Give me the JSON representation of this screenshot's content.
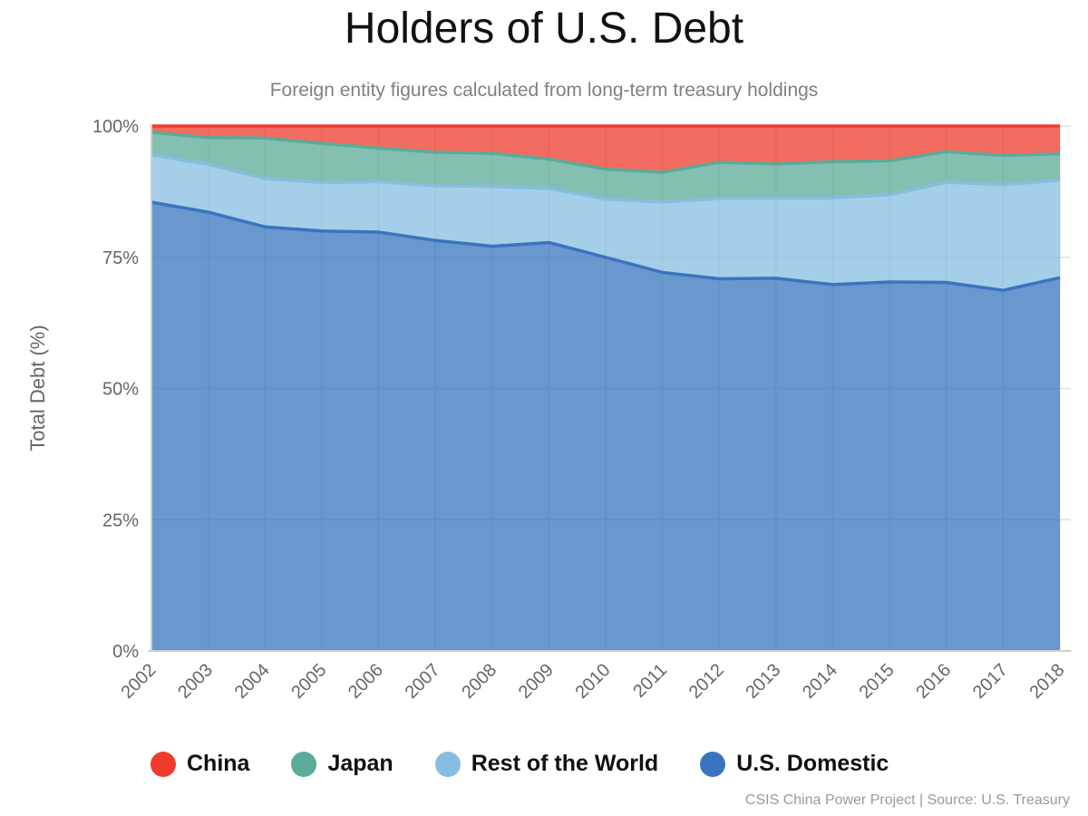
{
  "chart_data": {
    "type": "area",
    "title": "Holders of U.S. Debt",
    "subtitle": "Foreign entity figures calculated from long-term treasury holdings",
    "ylabel": "Total Debt (%)",
    "xlabel": "",
    "x": [
      "2002",
      "2003",
      "2004",
      "2005",
      "2006",
      "2007",
      "2008",
      "2009",
      "2010",
      "2011",
      "2012",
      "2013",
      "2014",
      "2015",
      "2016",
      "2017",
      "2018"
    ],
    "ylim": [
      0,
      100
    ],
    "yticks": [
      "0%",
      "25%",
      "50%",
      "75%",
      "100%"
    ],
    "stacked": true,
    "grid": true,
    "legend_position": "bottom",
    "series": [
      {
        "name": "U.S. Domestic",
        "color": "#3a74bf",
        "values": [
          85.5,
          83.6,
          80.8,
          80.0,
          79.8,
          78.2,
          77.1,
          77.8,
          75.0,
          72.1,
          70.9,
          71.0,
          69.8,
          70.3,
          70.2,
          68.7,
          71.1
        ]
      },
      {
        "name": "Rest of the World",
        "color": "#87bde0",
        "values": [
          9.0,
          9.1,
          9.2,
          9.2,
          9.6,
          10.4,
          11.4,
          10.3,
          11.1,
          13.4,
          15.3,
          15.3,
          16.5,
          16.6,
          19.1,
          20.1,
          18.6
        ]
      },
      {
        "name": "Japan",
        "color": "#5aab98",
        "values": [
          4.3,
          5.1,
          7.7,
          7.5,
          6.4,
          6.4,
          6.3,
          5.6,
          5.7,
          5.7,
          6.9,
          6.5,
          6.9,
          6.5,
          5.8,
          5.6,
          5.0
        ]
      },
      {
        "name": "China",
        "color": "#ef3b2c",
        "values": [
          1.2,
          2.2,
          2.3,
          3.3,
          4.2,
          5.0,
          5.2,
          6.3,
          8.2,
          8.8,
          6.9,
          7.2,
          6.8,
          6.6,
          4.9,
          5.6,
          5.3
        ]
      }
    ]
  },
  "legend": [
    {
      "label": "China",
      "color": "#ef3b2c"
    },
    {
      "label": "Japan",
      "color": "#5aab98"
    },
    {
      "label": "Rest of the World",
      "color": "#87bde0"
    },
    {
      "label": "U.S. Domestic",
      "color": "#3a74bf"
    }
  ],
  "source_note": "CSIS China Power Project | Source: U.S. Treasury"
}
